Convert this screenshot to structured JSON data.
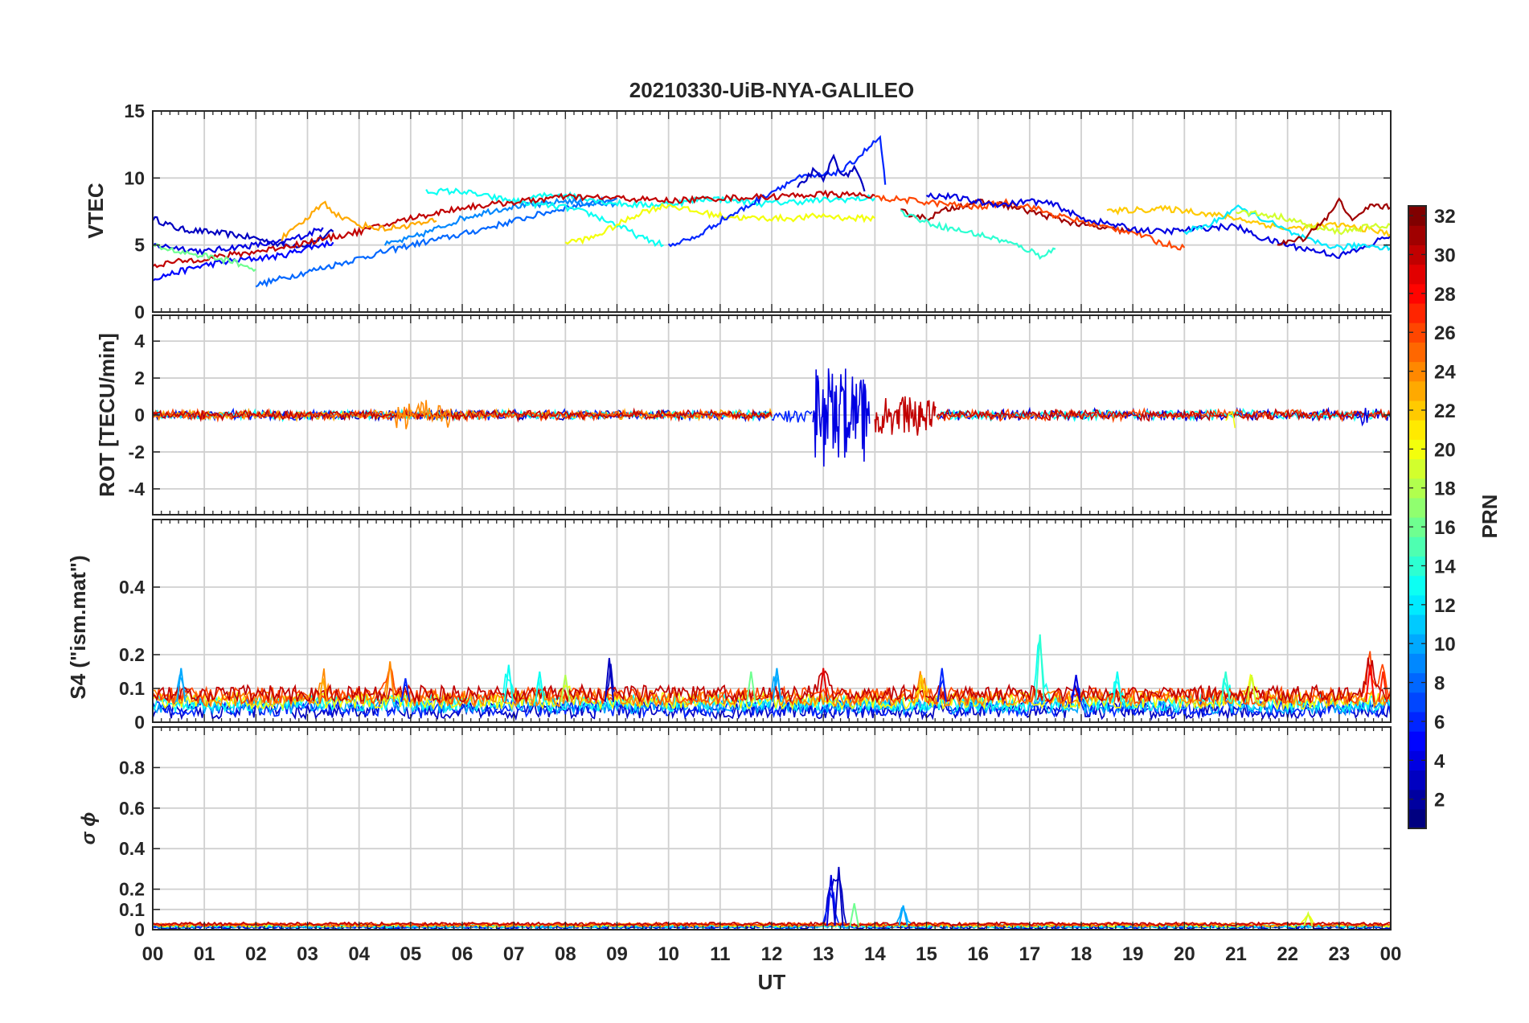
{
  "chart_data": {
    "type": "line",
    "title": "20210330-UiB-NYA-GALILEO",
    "xlabel": "UT",
    "x_ticks": [
      "00",
      "01",
      "02",
      "03",
      "04",
      "05",
      "06",
      "07",
      "08",
      "09",
      "10",
      "11",
      "12",
      "13",
      "14",
      "15",
      "16",
      "17",
      "18",
      "19",
      "20",
      "21",
      "22",
      "23",
      "00"
    ],
    "xlim": [
      0,
      24
    ],
    "colorbar": {
      "label": "PRN",
      "range": [
        1,
        32
      ],
      "ticks": [
        "2",
        "4",
        "6",
        "8",
        "10",
        "12",
        "14",
        "16",
        "18",
        "20",
        "22",
        "24",
        "26",
        "28",
        "30",
        "32"
      ],
      "colormap": "jet"
    },
    "panels": [
      {
        "id": "vtec",
        "ylabel": "VTEC",
        "ylim": [
          0,
          15
        ],
        "yticks": [
          {
            "v": 0,
            "label": "0"
          },
          {
            "v": 5,
            "label": "5"
          },
          {
            "v": 10,
            "label": "10"
          },
          {
            "v": 15,
            "label": "15"
          }
        ],
        "series": [
          {
            "prn": 3,
            "x": [
              0.0,
              0.5,
              1.0,
              1.5,
              2.0,
              2.5,
              3.0,
              3.5
            ],
            "y": [
              7.0,
              6.2,
              6.0,
              5.8,
              5.5,
              5.0,
              5.0,
              6.0
            ]
          },
          {
            "prn": 4,
            "x": [
              0.0,
              0.5,
              1.0,
              1.5,
              2.0,
              2.5,
              3.0,
              3.3
            ],
            "y": [
              5.0,
              4.8,
              4.5,
              4.8,
              5.0,
              5.2,
              5.8,
              6.3
            ]
          },
          {
            "prn": 5,
            "x": [
              0.0,
              0.5,
              1.0,
              1.5,
              2.0,
              2.5,
              3.0,
              3.5
            ],
            "y": [
              2.5,
              3.0,
              3.5,
              3.8,
              4.0,
              4.2,
              4.8,
              5.2
            ]
          },
          {
            "prn": 8,
            "x": [
              2.0,
              2.5,
              3.0,
              3.5,
              4.0,
              4.5,
              5.0,
              6.0,
              7.0,
              8.0,
              9.0
            ],
            "y": [
              2.0,
              2.5,
              3.0,
              3.5,
              4.0,
              4.5,
              5.0,
              5.8,
              6.8,
              7.8,
              8.5
            ]
          },
          {
            "prn": 9,
            "x": [
              4.5,
              5.0,
              5.5,
              6.0,
              6.5,
              7.0,
              7.5,
              8.0,
              8.5,
              9.0
            ],
            "y": [
              5.0,
              5.5,
              6.2,
              7.0,
              7.5,
              7.9,
              8.0,
              8.3,
              8.1,
              8.0
            ]
          },
          {
            "prn": 13,
            "x": [
              5.3,
              6.0,
              6.5,
              7.0,
              7.5,
              8.0,
              8.5,
              9.0,
              9.5,
              9.9
            ],
            "y": [
              9.0,
              9.0,
              8.6,
              8.3,
              8.0,
              7.8,
              7.3,
              6.5,
              5.5,
              5.0
            ]
          },
          {
            "prn": 13,
            "x": [
              7.3,
              7.8,
              8.3,
              8.8,
              9.3,
              9.8,
              10.3,
              10.8,
              11.3,
              11.8,
              12.3,
              12.8,
              13.3,
              14.0
            ],
            "y": [
              8.5,
              8.8,
              8.6,
              8.2,
              8.0,
              8.0,
              8.2,
              8.5,
              8.3,
              8.1,
              8.2,
              8.3,
              8.4,
              8.5
            ]
          },
          {
            "prn": 20,
            "x": [
              8.0,
              8.5,
              9.0,
              9.5,
              10.0,
              10.5,
              11.0,
              11.5,
              12.0,
              12.5,
              13.0,
              13.5,
              14.0
            ],
            "y": [
              5.2,
              5.5,
              6.5,
              7.5,
              8.0,
              7.5,
              7.2,
              7.0,
              7.0,
              7.0,
              7.2,
              7.0,
              7.0
            ]
          },
          {
            "prn": 6,
            "x": [
              10.0,
              10.5,
              11.0,
              11.5,
              12.0,
              12.5,
              13.0,
              13.4,
              13.8,
              14.1,
              14.2
            ],
            "y": [
              5.0,
              5.5,
              6.8,
              7.8,
              9.0,
              10.0,
              10.2,
              10.6,
              12.0,
              13.0,
              9.5
            ]
          },
          {
            "prn": 3,
            "x": [
              12.5,
              12.8,
              13.0,
              13.2,
              13.4,
              13.6,
              13.8
            ],
            "y": [
              9.2,
              10.5,
              9.8,
              11.6,
              10.0,
              10.8,
              9.0
            ]
          },
          {
            "prn": 31,
            "x": [
              14.5,
              15.0,
              15.5,
              16.0,
              16.5,
              17.0,
              17.5,
              18.0,
              18.5,
              19.0
            ],
            "y": [
              7.5,
              7.0,
              7.8,
              8.2,
              8.0,
              7.5,
              7.0,
              6.5,
              6.2,
              6.0
            ]
          },
          {
            "prn": 26,
            "x": [
              14.0,
              14.5,
              15.0,
              15.5,
              16.0,
              16.5,
              17.0,
              17.5,
              18.0,
              18.5,
              19.0,
              19.5,
              20.0
            ],
            "y": [
              8.5,
              8.4,
              8.2,
              8.0,
              7.8,
              8.2,
              7.9,
              7.2,
              6.8,
              6.3,
              6.0,
              5.2,
              4.8
            ]
          },
          {
            "prn": 14,
            "x": [
              14.5,
              15.0,
              15.5,
              16.0,
              16.5,
              17.0,
              17.2,
              17.5
            ],
            "y": [
              7.5,
              6.7,
              6.2,
              5.8,
              5.3,
              4.6,
              4.2,
              4.7
            ]
          },
          {
            "prn": 4,
            "x": [
              15.0,
              15.5,
              16.0,
              16.5,
              17.0,
              17.5,
              18.0,
              18.5,
              19.0,
              19.5,
              20.0,
              20.5,
              21.0,
              21.5,
              22.0,
              22.5,
              23.0,
              23.5,
              24.0
            ],
            "y": [
              8.7,
              8.6,
              8.2,
              8.0,
              8.3,
              8.0,
              7.0,
              6.6,
              6.2,
              6.0,
              6.1,
              6.3,
              6.4,
              5.5,
              5.0,
              4.6,
              4.2,
              4.8,
              5.8
            ]
          },
          {
            "prn": 22,
            "x": [
              18.5,
              19.0,
              19.5,
              20.0,
              20.5,
              21.0,
              21.5,
              22.0,
              22.5,
              23.0,
              23.5,
              24.0
            ],
            "y": [
              7.5,
              7.6,
              7.7,
              7.6,
              7.3,
              7.0,
              6.6,
              6.2,
              6.4,
              6.5,
              6.2,
              5.8
            ]
          },
          {
            "prn": 12,
            "x": [
              20.0,
              20.5,
              21.0,
              21.5,
              22.0,
              22.5,
              23.0,
              23.5,
              24.0
            ],
            "y": [
              6.0,
              6.5,
              7.8,
              7.0,
              6.0,
              5.2,
              4.8,
              5.0,
              4.8
            ]
          },
          {
            "prn": 19,
            "x": [
              21.0,
              21.5,
              22.0,
              22.5,
              23.0,
              23.5,
              24.0
            ],
            "y": [
              7.5,
              7.3,
              7.0,
              6.3,
              6.0,
              6.3,
              6.5
            ]
          },
          {
            "prn": 31,
            "x": [
              21.8,
              22.3,
              22.8,
              23.0,
              23.3,
              23.6,
              24.0
            ],
            "y": [
              5.0,
              5.5,
              7.2,
              8.3,
              6.8,
              8.0,
              7.8
            ]
          },
          {
            "prn": 30,
            "x": [
              0.0,
              1.0,
              2.0,
              3.0,
              4.0,
              5.0,
              6.0,
              7.0,
              8.0,
              9.0,
              10.0,
              11.0,
              12.0,
              13.0,
              14.0
            ],
            "y": [
              3.5,
              4.0,
              4.5,
              5.2,
              6.0,
              7.0,
              7.8,
              8.2,
              8.6,
              8.5,
              8.3,
              8.5,
              8.6,
              8.8,
              8.7
            ]
          },
          {
            "prn": 23,
            "x": [
              2.5,
              2.8,
              3.0,
              3.3,
              3.6,
              4.0,
              4.5,
              5.0,
              5.5
            ],
            "y": [
              5.5,
              6.3,
              7.0,
              8.2,
              7.2,
              6.5,
              6.2,
              6.5,
              6.8
            ]
          },
          {
            "prn": 16,
            "x": [
              0.0,
              0.5,
              1.0,
              1.5,
              2.0
            ],
            "y": [
              5.0,
              4.5,
              4.2,
              3.8,
              3.2
            ]
          }
        ]
      },
      {
        "id": "rot",
        "ylabel": "ROT [TECU/min]",
        "ylim": [
          -5.4,
          5.4
        ],
        "yticks": [
          {
            "v": -4,
            "label": "-4"
          },
          {
            "v": -2,
            "label": "-2"
          },
          {
            "v": 0,
            "label": "0"
          },
          {
            "v": 2,
            "label": "2"
          },
          {
            "v": 4,
            "label": "4"
          }
        ],
        "noise": [
          {
            "from": 0.0,
            "to": 12.0,
            "amp": 0.3,
            "prns": [
              3,
              6,
              13,
              23,
              26,
              30
            ]
          },
          {
            "from": 4.7,
            "to": 5.8,
            "amp": 0.9,
            "prns": [
              24
            ]
          },
          {
            "from": 12.0,
            "to": 12.8,
            "amp": 0.5,
            "prns": [
              6
            ]
          },
          {
            "from": 12.8,
            "to": 13.9,
            "amp": 3.5,
            "prns": [
              4
            ]
          },
          {
            "from": 14.0,
            "to": 15.2,
            "amp": 1.3,
            "prns": [
              30
            ]
          },
          {
            "from": 15.2,
            "to": 24.0,
            "amp": 0.35,
            "prns": [
              4,
              13,
              26,
              30
            ]
          },
          {
            "from": 20.8,
            "to": 21.0,
            "amp": 0.8,
            "prns": [
              20
            ]
          },
          {
            "from": 23.3,
            "to": 23.6,
            "amp": 0.8,
            "prns": [
              4
            ]
          }
        ]
      },
      {
        "id": "s4",
        "ylabel": "S4 (\"ism.mat\")",
        "ylim": [
          0,
          0.6
        ],
        "yticks": [
          {
            "v": 0,
            "label": "0"
          },
          {
            "v": 0.1,
            "label": "0.1"
          },
          {
            "v": 0.2,
            "label": "0.2"
          },
          {
            "v": 0.4,
            "label": "0.4"
          }
        ],
        "baseline": 0.06,
        "spikes": [
          {
            "x": 0.55,
            "y": 0.16,
            "prn": 10
          },
          {
            "x": 3.3,
            "y": 0.13,
            "prn": 23
          },
          {
            "x": 4.6,
            "y": 0.18,
            "prn": 24
          },
          {
            "x": 4.9,
            "y": 0.13,
            "prn": 6
          },
          {
            "x": 6.9,
            "y": 0.17,
            "prn": 13
          },
          {
            "x": 7.5,
            "y": 0.15,
            "prn": 13
          },
          {
            "x": 8.0,
            "y": 0.14,
            "prn": 18
          },
          {
            "x": 8.85,
            "y": 0.19,
            "prn": 3
          },
          {
            "x": 11.6,
            "y": 0.15,
            "prn": 16
          },
          {
            "x": 12.1,
            "y": 0.16,
            "prn": 10
          },
          {
            "x": 13.0,
            "y": 0.16,
            "prn": 29
          },
          {
            "x": 14.9,
            "y": 0.14,
            "prn": 22
          },
          {
            "x": 15.3,
            "y": 0.16,
            "prn": 6
          },
          {
            "x": 17.2,
            "y": 0.26,
            "prn": 14
          },
          {
            "x": 17.9,
            "y": 0.14,
            "prn": 4
          },
          {
            "x": 18.7,
            "y": 0.15,
            "prn": 13
          },
          {
            "x": 20.8,
            "y": 0.15,
            "prn": 14
          },
          {
            "x": 21.3,
            "y": 0.14,
            "prn": 19
          },
          {
            "x": 23.6,
            "y": 0.17,
            "prn": 28
          },
          {
            "x": 23.85,
            "y": 0.15,
            "prn": 27
          }
        ]
      },
      {
        "id": "sigma_phi",
        "ylabel": "σ ϕ",
        "ylim": [
          0,
          1.0
        ],
        "yticks": [
          {
            "v": 0,
            "label": "0"
          },
          {
            "v": 0.1,
            "label": "0.1"
          },
          {
            "v": 0.2,
            "label": "0.2"
          },
          {
            "v": 0.4,
            "label": "0.4"
          },
          {
            "v": 0.6,
            "label": "0.6"
          },
          {
            "v": 0.8,
            "label": "0.8"
          }
        ],
        "baseline": 0.02,
        "spikes": [
          {
            "x": 13.15,
            "y": 0.27,
            "prn": 4
          },
          {
            "x": 13.3,
            "y": 0.31,
            "prn": 3
          },
          {
            "x": 13.6,
            "y": 0.13,
            "prn": 16
          },
          {
            "x": 14.55,
            "y": 0.12,
            "prn": 10
          },
          {
            "x": 22.4,
            "y": 0.08,
            "prn": 19
          }
        ]
      }
    ]
  }
}
